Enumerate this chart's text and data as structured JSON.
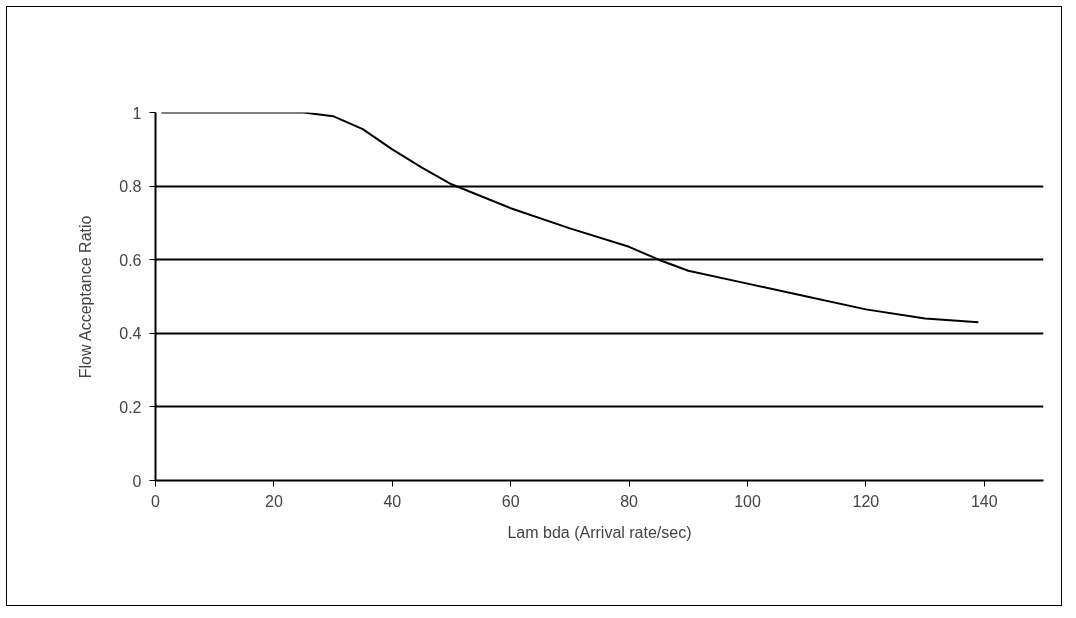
{
  "chart_data": {
    "type": "line",
    "xlabel": "Lam bda (Arrival rate/sec)",
    "ylabel": "Flow Acceptance Ratio",
    "series": [
      {
        "color": "#000000",
        "x": [
          1,
          25,
          30,
          35,
          40,
          45,
          50,
          60,
          70,
          80,
          85,
          90,
          100,
          110,
          120,
          130,
          139
        ],
        "values": [
          1,
          1,
          0.99,
          0.955,
          0.9,
          0.85,
          0.805,
          0.74,
          0.685,
          0.635,
          0.6,
          0.57,
          0.535,
          0.5,
          0.465,
          0.44,
          0.43
        ]
      }
    ],
    "xlim": [
      0,
      150
    ],
    "xticks": [
      0,
      20,
      40,
      60,
      80,
      100,
      120,
      140
    ],
    "ylim": [
      0,
      1
    ],
    "yticks": [
      0,
      0.2,
      0.4,
      0.6,
      0.8,
      1
    ],
    "grid": "y",
    "marker": "none",
    "line_style": "solid"
  }
}
